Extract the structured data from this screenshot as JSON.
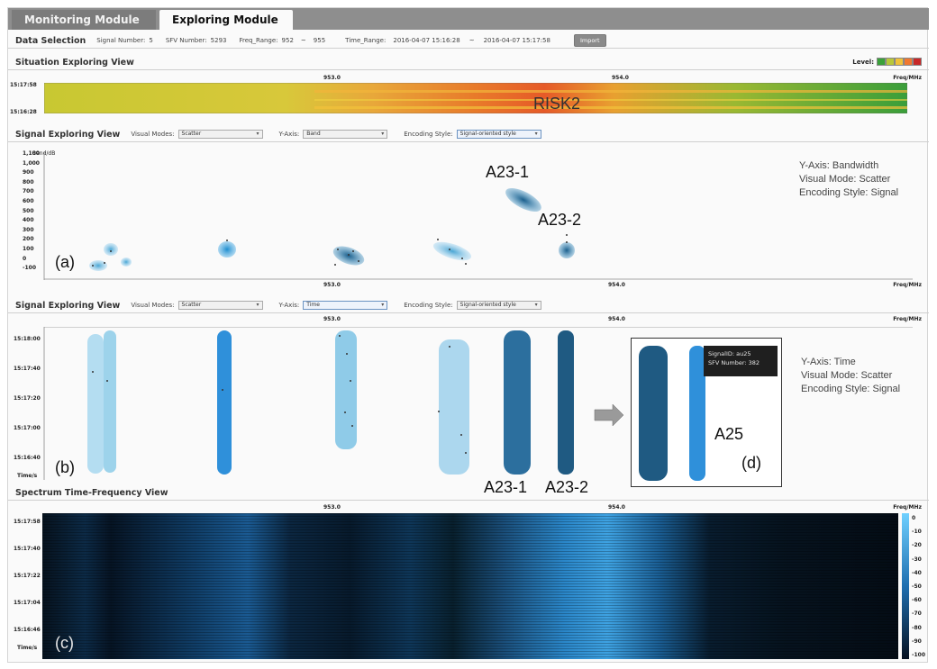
{
  "tabs": [
    {
      "label": "Monitoring Module"
    },
    {
      "label": "Exploring Module"
    }
  ],
  "data_selection": {
    "title": "Data Selection",
    "signal_number_label": "Signal Number:",
    "signal_number": "5",
    "sfv_number_label": "SFV Number:",
    "sfv_number": "5293",
    "freq_range_label": "Freq_Range:",
    "freq_from": "952",
    "freq_sep": "~",
    "freq_to": "955",
    "time_range_label": "Time_Range:",
    "time_from": "2016-04-07 15:16:28",
    "time_sep": "~",
    "time_to": "2016-04-07 15:17:58",
    "import_label": "Import"
  },
  "situation": {
    "title": "Situation Exploring View",
    "level_label": "Level:",
    "level_colors": [
      "#3aa13a",
      "#b8c83a",
      "#f0c23a",
      "#f07830",
      "#c82828"
    ],
    "t_top": "15:17:58",
    "t_bottom": "15:16:28",
    "tick_953": "953.0",
    "tick_954": "954.0",
    "freq_unit": "Freq/MHz",
    "risk_label": "RISK2"
  },
  "signal_view_1": {
    "title": "Signal Exploring View",
    "visual_modes_label": "Visual Modes:",
    "visual_mode": "Scatter",
    "y_axis_label": "Y-Axis:",
    "y_axis": "Band",
    "encoding_label": "Encoding Style:",
    "encoding": "Signal-oriented style",
    "y_title": "Band/dB",
    "y_ticks": [
      "1,100",
      "1,000",
      "900",
      "800",
      "700",
      "600",
      "500",
      "400",
      "300",
      "200",
      "100",
      "0",
      "-100"
    ],
    "tick_953": "953.0",
    "tick_954": "954.0",
    "freq_unit": "Freq/MHz",
    "label_a23_1": "A23-1",
    "label_a23_2": "A23-2",
    "panel_label": "(a)",
    "annotation_lines": [
      "Y-Axis: Bandwidth",
      "Visual Mode: Scatter",
      "Encoding Style: Signal"
    ]
  },
  "signal_view_2": {
    "title": "Signal Exploring View",
    "visual_modes_label": "Visual Modes:",
    "visual_mode": "Scatter",
    "y_axis_label": "Y-Axis:",
    "y_axis": "Time",
    "encoding_label": "Encoding Style:",
    "encoding": "Signal-oriented style",
    "tick_953": "953.0",
    "tick_954": "954.0",
    "freq_unit": "Freq/MHz",
    "y_ticks": [
      "15:18:00",
      "15:17:40",
      "15:17:20",
      "15:17:00",
      "15:16:40"
    ],
    "y_unit": "Time/s",
    "panel_label": "(b)",
    "label_a23_1": "A23-1",
    "label_a23_2": "A23-2",
    "tooltip_line1": "SignalID: au25",
    "tooltip_line2": "SFV Number: 382",
    "label_a25": "A25",
    "detail_label": "(d)",
    "annotation_lines": [
      "Y-Axis: Time",
      "Visual Mode: Scatter",
      "Encoding Style: Signal"
    ]
  },
  "spectrum": {
    "title": "Spectrum Time-Frequency View",
    "tick_953": "953.0",
    "tick_954": "954.0",
    "freq_unit": "Freq/MHz",
    "y_ticks": [
      "15:17:58",
      "15:17:40",
      "15:17:22",
      "15:17:04",
      "15:16:46"
    ],
    "y_unit": "Time/s",
    "panel_label": "(c)",
    "colorbar_ticks": [
      "0",
      "-10",
      "-20",
      "-30",
      "-40",
      "-50",
      "-60",
      "-70",
      "-80",
      "-90",
      "-100"
    ]
  }
}
